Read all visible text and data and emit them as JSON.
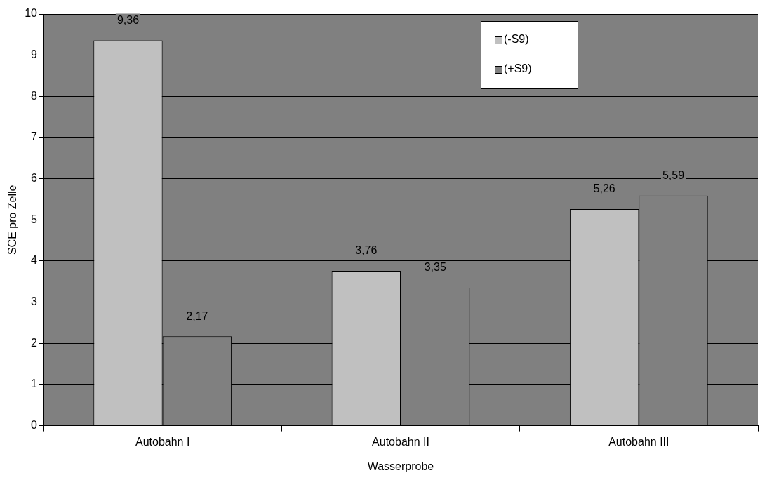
{
  "chart_data": {
    "type": "bar",
    "xlabel": "Wasserprobe",
    "ylabel": "SCE pro Zelle",
    "categories": [
      "Autobahn I",
      "Autobahn II",
      "Autobahn III"
    ],
    "series": [
      {
        "name": "(-S9)",
        "color": "#c0c0c0",
        "values": [
          9.36,
          3.76,
          5.26
        ],
        "value_labels": [
          "9,36",
          "3,76",
          "5,26"
        ]
      },
      {
        "name": "(+S9)",
        "color": "#808080",
        "values": [
          2.17,
          3.35,
          5.59
        ],
        "value_labels": [
          "2,17",
          "3,35",
          "5,59"
        ]
      }
    ],
    "ylim": [
      0,
      10
    ],
    "yticks": [
      0,
      1,
      2,
      3,
      4,
      5,
      6,
      7,
      8,
      9,
      10
    ],
    "grid": "y",
    "legend": "top right"
  }
}
